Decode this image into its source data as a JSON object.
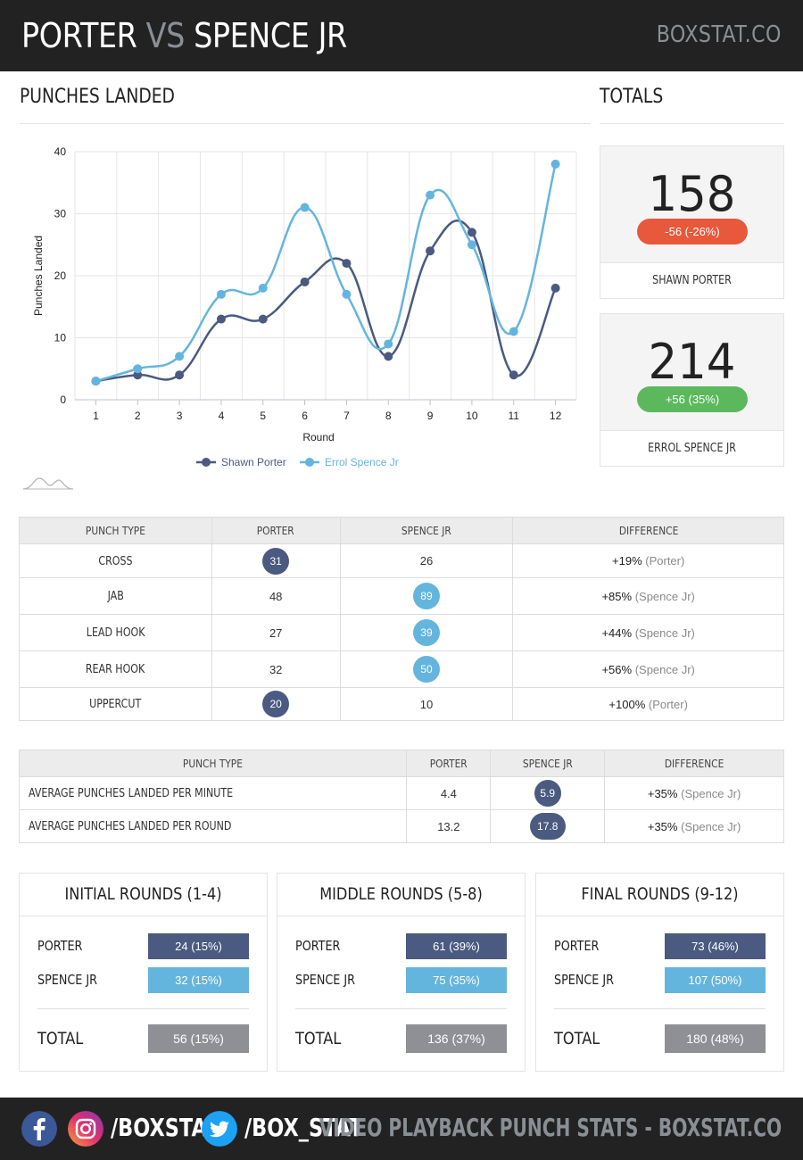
{
  "header": {
    "name1": "PORTER",
    "vs": "VS",
    "name2": "SPENCE JR",
    "brand": "BOXSTAT.CO"
  },
  "sections": {
    "punches_landed": "PUNCHES LANDED",
    "totals": "TOTALS"
  },
  "colors": {
    "porter": "#4a5a80",
    "spence": "#64b5de",
    "negative": "#e8583a",
    "positive": "#5cb85c",
    "total_bar": "#8e9096",
    "header_bg": "#222222"
  },
  "chart_data": {
    "type": "line",
    "x": [
      1,
      2,
      3,
      4,
      5,
      6,
      7,
      8,
      9,
      10,
      11,
      12
    ],
    "xlabel": "Round",
    "ylabel": "Punches Landed",
    "ylim": [
      0,
      40
    ],
    "yticks": [
      0,
      10,
      20,
      30,
      40
    ],
    "grid": true,
    "legend_position": "bottom",
    "series": [
      {
        "name": "Shawn Porter",
        "color": "#4a5a80",
        "values": [
          3,
          4,
          4,
          13,
          13,
          19,
          22,
          7,
          24,
          27,
          4,
          18
        ]
      },
      {
        "name": "Errol Spence Jr",
        "color": "#64b5de",
        "values": [
          3,
          5,
          7,
          17,
          18,
          31,
          17,
          9,
          33,
          25,
          11,
          38
        ]
      }
    ]
  },
  "totals": [
    {
      "value": "158",
      "change": "-56 (-26%)",
      "name": "SHAWN PORTER",
      "color": "#e8583a"
    },
    {
      "value": "214",
      "change": "+56 (35%)",
      "name": "ERROL SPENCE JR",
      "color": "#5cb85c"
    }
  ],
  "punch_table": {
    "headers": [
      "PUNCH TYPE",
      "PORTER",
      "SPENCE JR",
      "DIFFERENCE"
    ],
    "rows": [
      {
        "type": "CROSS",
        "porter": "31",
        "spence": "26",
        "leader": "porter",
        "diff": "+19%",
        "who": "(Porter)"
      },
      {
        "type": "JAB",
        "porter": "48",
        "spence": "89",
        "leader": "spence",
        "diff": "+85%",
        "who": "(Spence Jr)"
      },
      {
        "type": "LEAD HOOK",
        "porter": "27",
        "spence": "39",
        "leader": "spence",
        "diff": "+44%",
        "who": "(Spence Jr)"
      },
      {
        "type": "REAR HOOK",
        "porter": "32",
        "spence": "50",
        "leader": "spence",
        "diff": "+56%",
        "who": "(Spence Jr)"
      },
      {
        "type": "UPPERCUT",
        "porter": "20",
        "spence": "10",
        "leader": "porter",
        "diff": "+100%",
        "who": "(Porter)"
      }
    ]
  },
  "avg_table": {
    "headers": [
      "PUNCH TYPE",
      "PORTER",
      "SPENCE JR",
      "DIFFERENCE"
    ],
    "rows": [
      {
        "type": "AVERAGE PUNCHES LANDED PER MINUTE",
        "porter": "4.4",
        "spence": "5.9",
        "diff": "+35%",
        "who": "(Spence Jr)"
      },
      {
        "type": "AVERAGE PUNCHES LANDED PER ROUND",
        "porter": "13.2",
        "spence": "17.8",
        "diff": "+35%",
        "who": "(Spence Jr)"
      }
    ]
  },
  "rounds": [
    {
      "title": "INITIAL ROUNDS (1-4)",
      "porter_label": "PORTER",
      "porter": "24 (15%)",
      "spence_label": "SPENCE JR",
      "spence": "32 (15%)",
      "total_label": "TOTAL",
      "total": "56 (15%)"
    },
    {
      "title": "MIDDLE ROUNDS (5-8)",
      "porter_label": "PORTER",
      "porter": "61 (39%)",
      "spence_label": "SPENCE JR",
      "spence": "75 (35%)",
      "total_label": "TOTAL",
      "total": "136 (37%)"
    },
    {
      "title": "FINAL ROUNDS (9-12)",
      "porter_label": "PORTER",
      "porter": "73 (46%)",
      "spence_label": "SPENCE JR",
      "spence": "107 (50%)",
      "total_label": "TOTAL",
      "total": "180 (48%)"
    }
  ],
  "footer": {
    "handle1": "/BOXSTAT",
    "handle2": "/BOX_STAT",
    "tagline": "VIDEO PLAYBACK PUNCH STATS - BOXSTAT.CO",
    "icons": [
      "facebook-icon",
      "instagram-icon",
      "twitter-icon"
    ]
  }
}
